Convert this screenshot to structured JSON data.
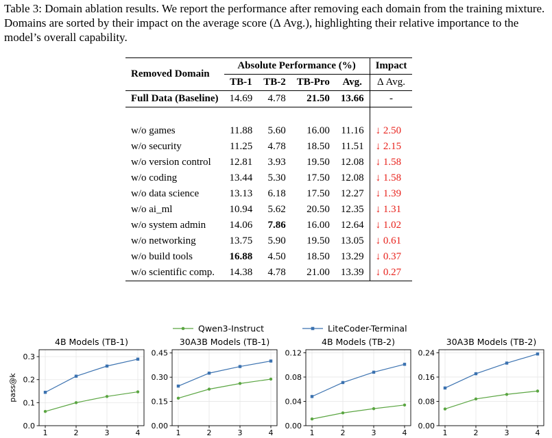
{
  "caption": "Table 3: Domain ablation results. We report the performance after removing each domain from the training mixture. Domains are sorted by their impact on the average score (Δ Avg.), highlighting their relative importance to the model’s overall capability.",
  "table": {
    "header_removed": "Removed Domain",
    "header_abs": "Absolute Performance (%)",
    "header_impact": "Impact",
    "sub_tb1": "TB-1",
    "sub_tb2": "TB-2",
    "sub_tbpro": "TB-Pro",
    "sub_avg": "Avg.",
    "sub_delta": "Δ Avg.",
    "baseline": {
      "name": "Full Data (Baseline)",
      "tb1": "14.69",
      "tb2": "4.78",
      "tbpro": "21.50",
      "avg": "13.66",
      "delta": "-"
    },
    "rows": [
      {
        "name": "w/o games",
        "tb1": "11.88",
        "tb2": "5.60",
        "tbpro": "16.00",
        "avg": "11.16",
        "delta": "↓ 2.50"
      },
      {
        "name": "w/o security",
        "tb1": "11.25",
        "tb2": "4.78",
        "tbpro": "18.50",
        "avg": "11.51",
        "delta": "↓ 2.15"
      },
      {
        "name": "w/o version control",
        "tb1": "12.81",
        "tb2": "3.93",
        "tbpro": "19.50",
        "avg": "12.08",
        "delta": "↓ 1.58"
      },
      {
        "name": "w/o coding",
        "tb1": "13.44",
        "tb2": "5.30",
        "tbpro": "17.50",
        "avg": "12.08",
        "delta": "↓ 1.58"
      },
      {
        "name": "w/o data science",
        "tb1": "13.13",
        "tb2": "6.18",
        "tbpro": "17.50",
        "avg": "12.27",
        "delta": "↓ 1.39"
      },
      {
        "name": "w/o ai_ml",
        "tb1": "10.94",
        "tb2": "5.62",
        "tbpro": "20.50",
        "avg": "12.35",
        "delta": "↓ 1.31"
      },
      {
        "name": "w/o system admin",
        "tb1": "14.06",
        "tb2": "7.86",
        "tbpro": "16.00",
        "avg": "12.64",
        "delta": "↓ 1.02"
      },
      {
        "name": "w/o networking",
        "tb1": "13.75",
        "tb2": "5.90",
        "tbpro": "19.50",
        "avg": "13.05",
        "delta": "↓ 0.61"
      },
      {
        "name": "w/o build tools",
        "tb1": "16.88",
        "tb2": "4.50",
        "tbpro": "18.50",
        "avg": "13.29",
        "delta": "↓ 0.37"
      },
      {
        "name": "w/o scientific comp.",
        "tb1": "14.38",
        "tb2": "4.78",
        "tbpro": "21.00",
        "avg": "13.39",
        "delta": "↓ 0.27"
      }
    ],
    "delta_color": "#e8201a"
  },
  "chart_data": [
    {
      "type": "line",
      "title": "4B Models (TB-1)",
      "ylabel": "pass@k",
      "x": [
        1,
        2,
        3,
        4
      ],
      "ylim": [
        0,
        0.33
      ],
      "yticks": [
        "0.0",
        "0.1",
        "0.2",
        "0.3"
      ],
      "ytick_values": [
        0,
        0.1,
        0.2,
        0.3
      ],
      "series": [
        {
          "name": "Qwen3-Instruct",
          "values": [
            0.062,
            0.1,
            0.127,
            0.147
          ]
        },
        {
          "name": "LiteCoder-Terminal",
          "values": [
            0.145,
            0.215,
            0.259,
            0.289
          ]
        }
      ]
    },
    {
      "type": "line",
      "title": "30A3B Models (TB-1)",
      "ylabel": "",
      "x": [
        1,
        2,
        3,
        4
      ],
      "ylim": [
        0,
        0.47
      ],
      "yticks": [
        "0.00",
        "0.15",
        "0.30",
        "0.45"
      ],
      "ytick_values": [
        0,
        0.15,
        0.3,
        0.45
      ],
      "series": [
        {
          "name": "Qwen3-Instruct",
          "values": [
            0.17,
            0.226,
            0.261,
            0.288
          ]
        },
        {
          "name": "LiteCoder-Terminal",
          "values": [
            0.245,
            0.325,
            0.366,
            0.4
          ]
        }
      ]
    },
    {
      "type": "line",
      "title": "4B Models (TB-2)",
      "ylabel": "",
      "x": [
        1,
        2,
        3,
        4
      ],
      "ylim": [
        0,
        0.125
      ],
      "yticks": [
        "0.00",
        "0.04",
        "0.08",
        "0.12"
      ],
      "ytick_values": [
        0,
        0.04,
        0.08,
        0.12
      ],
      "series": [
        {
          "name": "Qwen3-Instruct",
          "values": [
            0.011,
            0.021,
            0.028,
            0.034
          ]
        },
        {
          "name": "LiteCoder-Terminal",
          "values": [
            0.048,
            0.071,
            0.088,
            0.101
          ]
        }
      ]
    },
    {
      "type": "line",
      "title": "30A3B Models (TB-2)",
      "ylabel": "",
      "x": [
        1,
        2,
        3,
        4
      ],
      "ylim": [
        0,
        0.25
      ],
      "yticks": [
        "0.00",
        "0.08",
        "0.16",
        "0.24"
      ],
      "ytick_values": [
        0,
        0.08,
        0.16,
        0.24
      ],
      "series": [
        {
          "name": "Qwen3-Instruct",
          "values": [
            0.055,
            0.088,
            0.103,
            0.114
          ]
        },
        {
          "name": "LiteCoder-Terminal",
          "values": [
            0.124,
            0.171,
            0.206,
            0.236
          ]
        }
      ]
    }
  ],
  "legend": {
    "items": [
      {
        "name": "Qwen3-Instruct",
        "color": "#5aa541",
        "marker": "circle"
      },
      {
        "name": "LiteCoder-Terminal",
        "color": "#3b72b0",
        "marker": "square"
      }
    ],
    "placement": "top-center"
  }
}
